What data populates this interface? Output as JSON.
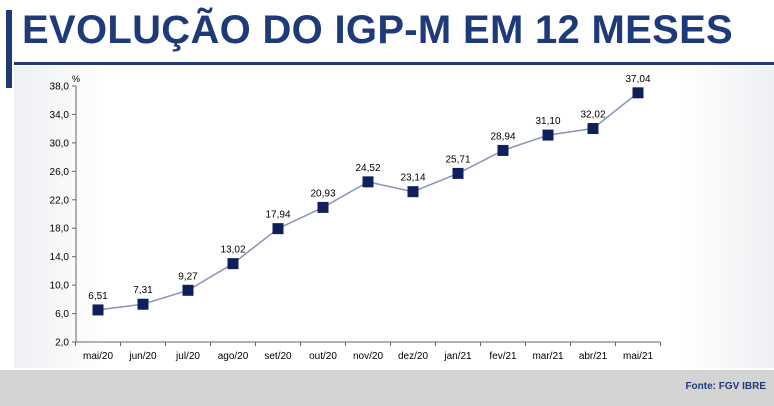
{
  "header": {
    "title": "EVOLUÇÃO DO IGP-M EM 12 MESES"
  },
  "footer": {
    "source": "Fonte: FGV IBRE"
  },
  "colors": {
    "title": "#1f3a78",
    "line": "#8a92b8",
    "marker": "#0f1f5c"
  },
  "chart_data": {
    "type": "line",
    "title": "EVOLUÇÃO DO IGP-M EM 12 MESES",
    "ylabel": "%",
    "xlabel": "",
    "ylim": [
      2.0,
      38.0
    ],
    "yticks": [
      "2,0",
      "6,0",
      "10,0",
      "14,0",
      "18,0",
      "22,0",
      "26,0",
      "30,0",
      "34,0",
      "38,0"
    ],
    "categories": [
      "mai/20",
      "jun/20",
      "jul/20",
      "ago/20",
      "set/20",
      "out/20",
      "nov/20",
      "dez/20",
      "jan/21",
      "fev/21",
      "mar/21",
      "abr/21",
      "mai/21"
    ],
    "values": [
      6.51,
      7.31,
      9.27,
      13.02,
      17.94,
      20.93,
      24.52,
      23.14,
      25.71,
      28.94,
      31.1,
      32.02,
      37.04
    ],
    "labels": [
      "6,51",
      "7,31",
      "9,27",
      "13,02",
      "17,94",
      "20,93",
      "24,52",
      "23,14",
      "25,71",
      "28,94",
      "31,10",
      "32,02",
      "37,04"
    ],
    "grid": false,
    "legend": "none"
  }
}
